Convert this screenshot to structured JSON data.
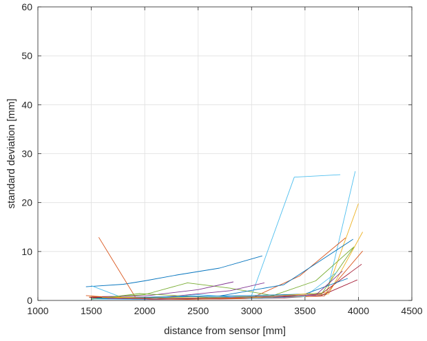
{
  "chart_data": {
    "type": "line",
    "xlabel": "distance from sensor [mm]",
    "ylabel": "standard deviation [mm]",
    "xlim": [
      1000,
      4500
    ],
    "ylim": [
      0,
      60
    ],
    "xticks": [
      1000,
      1500,
      2000,
      2500,
      3000,
      3500,
      4000,
      4500
    ],
    "yticks": [
      0,
      10,
      20,
      30,
      40,
      50,
      60
    ],
    "xtick_labels": [
      "1000",
      "1500",
      "2000",
      "2500",
      "3000",
      "3500",
      "4000",
      "4500"
    ],
    "ytick_labels": [
      "0",
      "10",
      "20",
      "30",
      "40",
      "50",
      "60"
    ],
    "grid": true,
    "series": [
      {
        "color": "#0072BD",
        "x": [
          1450,
          1800,
          2000,
          2300,
          2700,
          3100
        ],
        "y": [
          2.8,
          3.3,
          4.0,
          5.2,
          6.6,
          9.1
        ]
      },
      {
        "color": "#4DBEEE",
        "x": [
          1500,
          1800,
          2400,
          3000,
          3400,
          3830
        ],
        "y": [
          3.0,
          0.5,
          0.8,
          1.0,
          25.2,
          25.7
        ]
      },
      {
        "color": "#4DBEEE",
        "x": [
          1500,
          2000,
          2700,
          3300,
          3700,
          3970
        ],
        "y": [
          0.6,
          0.4,
          0.5,
          0.9,
          1.2,
          26.4
        ]
      },
      {
        "color": "#D95319",
        "x": [
          1570,
          1920,
          2400,
          3000,
          3450,
          3880
        ],
        "y": [
          12.9,
          0.4,
          0.2,
          0.5,
          5.0,
          12.8
        ]
      },
      {
        "color": "#EDB120",
        "x": [
          1500,
          2000,
          2600,
          3200,
          3700,
          4000
        ],
        "y": [
          0.9,
          0.3,
          0.4,
          0.8,
          1.6,
          19.8
        ]
      },
      {
        "color": "#EDB120",
        "x": [
          1480,
          2100,
          2700,
          3300,
          3720,
          4040
        ],
        "y": [
          0.7,
          0.6,
          0.5,
          0.7,
          1.3,
          14.0
        ]
      },
      {
        "color": "#77AC30",
        "x": [
          1500,
          2000,
          2400,
          2800,
          3200,
          3600,
          3950
        ],
        "y": [
          0.4,
          1.2,
          3.6,
          2.5,
          1.0,
          4.0,
          10.8
        ]
      },
      {
        "color": "#7E2F8E",
        "x": [
          1600,
          2000,
          2500,
          2830
        ],
        "y": [
          0.8,
          0.9,
          2.2,
          3.8
        ]
      },
      {
        "color": "#7E2F8E",
        "x": [
          1700,
          2200,
          2800,
          3120
        ],
        "y": [
          0.5,
          0.7,
          2.0,
          3.6
        ]
      },
      {
        "color": "#0072BD",
        "x": [
          1500,
          2100,
          2700,
          3300,
          3950
        ],
        "y": [
          0.3,
          0.7,
          0.9,
          3.2,
          12.5
        ]
      },
      {
        "color": "#A2142F",
        "x": [
          1480,
          2000,
          2600,
          3200,
          3650,
          4030
        ],
        "y": [
          0.6,
          0.2,
          0.4,
          0.6,
          1.3,
          7.4
        ]
      },
      {
        "color": "#A2142F",
        "x": [
          1500,
          2100,
          2700,
          3300,
          3650,
          3990
        ],
        "y": [
          0.7,
          0.4,
          0.3,
          0.5,
          1.0,
          4.2
        ]
      },
      {
        "color": "#D95319",
        "x": [
          1450,
          1900,
          2500,
          3100,
          3680,
          4040
        ],
        "y": [
          1.0,
          0.2,
          0.3,
          0.5,
          0.9,
          10.1
        ]
      },
      {
        "color": "#77AC30",
        "x": [
          1500,
          1950,
          2600,
          3200,
          3660,
          3960
        ],
        "y": [
          0.2,
          1.4,
          0.6,
          0.9,
          1.5,
          11.0
        ]
      },
      {
        "color": "#4DBEEE",
        "x": [
          1500,
          2000,
          2500,
          3000,
          3500,
          3800
        ],
        "y": [
          0.3,
          0.2,
          1.2,
          0.4,
          0.8,
          5.8
        ]
      },
      {
        "color": "#0072BD",
        "x": [
          1550,
          2000,
          2500,
          3000,
          3500,
          3900
        ],
        "y": [
          0.5,
          0.6,
          0.8,
          1.0,
          1.3,
          4.5
        ]
      },
      {
        "color": "#EDB120",
        "x": [
          1600,
          2050,
          2550,
          3050,
          3550
        ],
        "y": [
          0.6,
          0.5,
          0.4,
          0.6,
          1.4
        ]
      },
      {
        "color": "#7E2F8E",
        "x": [
          1650,
          2150,
          2650,
          3150,
          3600,
          3850
        ],
        "y": [
          0.4,
          0.3,
          0.5,
          0.8,
          1.1,
          6.0
        ]
      }
    ]
  }
}
